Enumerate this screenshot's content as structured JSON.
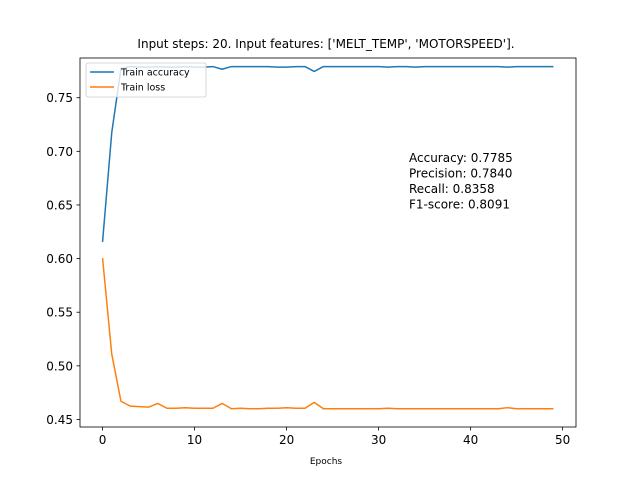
{
  "chart_data": {
    "type": "line",
    "title": "Input steps: 20. Input features: ['MELT_TEMP', 'MOTORSPEED'].",
    "xlabel": "Epochs",
    "ylabel": "",
    "xlim": [
      -2.45,
      51.45
    ],
    "ylim": [
      0.443,
      0.787
    ],
    "x_ticks": [
      0,
      10,
      20,
      30,
      40,
      50
    ],
    "x_tick_labels": [
      "0",
      "10",
      "20",
      "30",
      "40",
      "50"
    ],
    "y_ticks": [
      0.45,
      0.5,
      0.55,
      0.6,
      0.65,
      0.7,
      0.75
    ],
    "y_tick_labels": [
      "0.45",
      "0.50",
      "0.55",
      "0.60",
      "0.65",
      "0.70",
      "0.75"
    ],
    "grid": false,
    "legend_position": "top-left",
    "x": [
      0,
      1,
      2,
      3,
      4,
      5,
      6,
      7,
      8,
      9,
      10,
      11,
      12,
      13,
      14,
      15,
      16,
      17,
      18,
      19,
      20,
      21,
      22,
      23,
      24,
      25,
      26,
      27,
      28,
      29,
      30,
      31,
      32,
      33,
      34,
      35,
      36,
      37,
      38,
      39,
      40,
      41,
      42,
      43,
      44,
      45,
      46,
      47,
      48,
      49
    ],
    "series": [
      {
        "name": "Train accuracy",
        "color": "#1f77b4",
        "values": [
          0.6155,
          0.7175,
          0.777,
          0.779,
          0.7785,
          0.7785,
          0.779,
          0.7785,
          0.7785,
          0.779,
          0.7785,
          0.7785,
          0.779,
          0.7765,
          0.779,
          0.779,
          0.779,
          0.779,
          0.779,
          0.7785,
          0.7785,
          0.779,
          0.779,
          0.7745,
          0.779,
          0.779,
          0.779,
          0.779,
          0.779,
          0.779,
          0.779,
          0.7785,
          0.779,
          0.779,
          0.7785,
          0.779,
          0.779,
          0.779,
          0.779,
          0.779,
          0.779,
          0.779,
          0.779,
          0.779,
          0.7785,
          0.779,
          0.779,
          0.779,
          0.779,
          0.779
        ]
      },
      {
        "name": "Train loss",
        "color": "#ff7f0e",
        "values": [
          0.6005,
          0.511,
          0.467,
          0.4625,
          0.462,
          0.4615,
          0.465,
          0.4605,
          0.4605,
          0.461,
          0.4605,
          0.4605,
          0.4605,
          0.465,
          0.46,
          0.4605,
          0.46,
          0.46,
          0.4605,
          0.4605,
          0.461,
          0.4605,
          0.4605,
          0.466,
          0.46,
          0.46,
          0.46,
          0.46,
          0.46,
          0.46,
          0.46,
          0.4605,
          0.46,
          0.46,
          0.46,
          0.46,
          0.46,
          0.46,
          0.46,
          0.46,
          0.46,
          0.46,
          0.46,
          0.46,
          0.461,
          0.46,
          0.46,
          0.46,
          0.46,
          0.46
        ]
      }
    ],
    "annotations": [
      "Accuracy: 0.7785",
      "Precision: 0.7840",
      "Recall: 0.8358",
      "F1-score: 0.8091"
    ]
  }
}
